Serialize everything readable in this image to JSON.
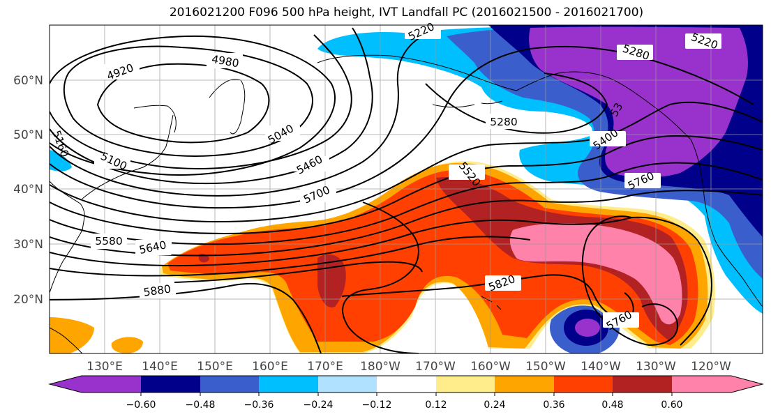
{
  "title": "2016021200 F096 500 hPa height, IVT Landfall PC (2016021500 - 2016021700)",
  "lat_ticks": [
    "60°N",
    "50°N",
    "40°N",
    "30°N",
    "20°N"
  ],
  "lon_ticks": [
    "130°E",
    "140°E",
    "150°E",
    "160°E",
    "170°E",
    "180°W",
    "170°W",
    "160°W",
    "150°W",
    "140°W",
    "130°W",
    "120°W"
  ],
  "colorbar": {
    "ticks": [
      "−0.60",
      "−0.48",
      "−0.36",
      "−0.24",
      "−0.12",
      "0.12",
      "0.24",
      "0.36",
      "0.48",
      "0.60"
    ],
    "colors": [
      "#9932cc",
      "#00008b",
      "#3a5fcd",
      "#00bfff",
      "#b0e2ff",
      "#ffffff",
      "#ffec8b",
      "#ffa500",
      "#ff4000",
      "#b22222",
      "#ff82ab"
    ]
  },
  "contour_labels": [
    "4920",
    "4980",
    "5040",
    "5100",
    "5160",
    "5220",
    "5220",
    "5280",
    "5280",
    "5460",
    "5520",
    "5580",
    "5640",
    "5700",
    "5760",
    "5760",
    "5820",
    "5880",
    "5400",
    "53"
  ]
}
